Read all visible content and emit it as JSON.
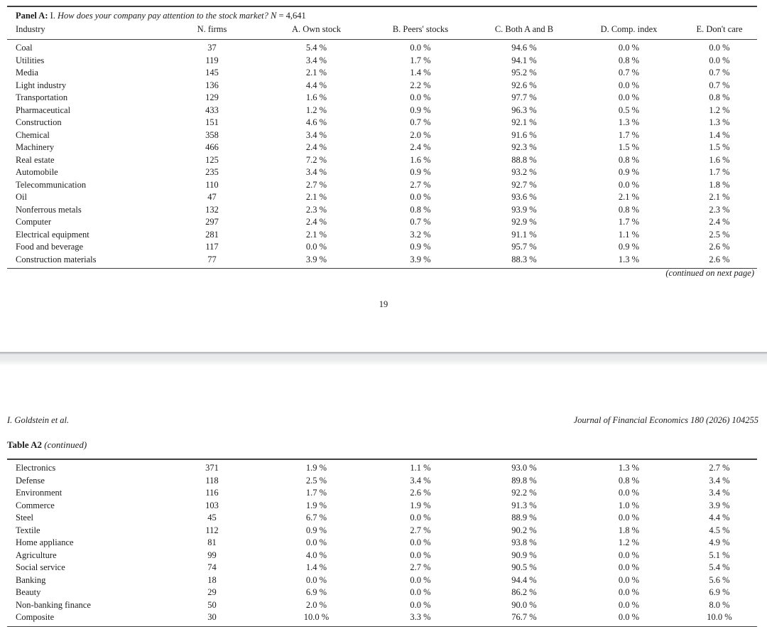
{
  "page1": {
    "panel": {
      "label": "Panel A:",
      "numeral": "I.",
      "question": "How does your company pay attention to the stock market?",
      "n_symbol": "N",
      "n_value": "= 4,641"
    },
    "columns": [
      "Industry",
      "N. firms",
      "A. Own stock",
      "B. Peers' stocks",
      "C. Both A and B",
      "D. Comp. index",
      "E. Don't care"
    ],
    "rows": [
      [
        "Coal",
        "37",
        "5.4 %",
        "0.0 %",
        "94.6 %",
        "0.0 %",
        "0.0 %"
      ],
      [
        "Utilities",
        "119",
        "3.4 %",
        "1.7 %",
        "94.1 %",
        "0.8 %",
        "0.0 %"
      ],
      [
        "Media",
        "145",
        "2.1 %",
        "1.4 %",
        "95.2 %",
        "0.7 %",
        "0.7 %"
      ],
      [
        "Light industry",
        "136",
        "4.4 %",
        "2.2 %",
        "92.6 %",
        "0.0 %",
        "0.7 %"
      ],
      [
        "Transportation",
        "129",
        "1.6 %",
        "0.0 %",
        "97.7 %",
        "0.0 %",
        "0.8 %"
      ],
      [
        "Pharmaceutical",
        "433",
        "1.2 %",
        "0.9 %",
        "96.3 %",
        "0.5 %",
        "1.2 %"
      ],
      [
        "Construction",
        "151",
        "4.6 %",
        "0.7 %",
        "92.1 %",
        "1.3 %",
        "1.3 %"
      ],
      [
        "Chemical",
        "358",
        "3.4 %",
        "2.0 %",
        "91.6 %",
        "1.7 %",
        "1.4 %"
      ],
      [
        "Machinery",
        "466",
        "2.4 %",
        "2.4 %",
        "92.3 %",
        "1.5 %",
        "1.5 %"
      ],
      [
        "Real estate",
        "125",
        "7.2 %",
        "1.6 %",
        "88.8 %",
        "0.8 %",
        "1.6 %"
      ],
      [
        "Automobile",
        "235",
        "3.4 %",
        "0.9 %",
        "93.2 %",
        "0.9 %",
        "1.7 %"
      ],
      [
        "Telecommunication",
        "110",
        "2.7 %",
        "2.7 %",
        "92.7 %",
        "0.0 %",
        "1.8 %"
      ],
      [
        "Oil",
        "47",
        "2.1 %",
        "0.0 %",
        "93.6 %",
        "2.1 %",
        "2.1 %"
      ],
      [
        "Nonferrous metals",
        "132",
        "2.3 %",
        "0.8 %",
        "93.9 %",
        "0.8 %",
        "2.3 %"
      ],
      [
        "Computer",
        "297",
        "2.4 %",
        "0.7 %",
        "92.9 %",
        "1.7 %",
        "2.4 %"
      ],
      [
        "Electrical equipment",
        "281",
        "2.1 %",
        "3.2 %",
        "91.1 %",
        "1.1 %",
        "2.5 %"
      ],
      [
        "Food and beverage",
        "117",
        "0.0 %",
        "0.9 %",
        "95.7 %",
        "0.9 %",
        "2.6 %"
      ],
      [
        "Construction materials",
        "77",
        "3.9 %",
        "3.9 %",
        "88.3 %",
        "1.3 %",
        "2.6 %"
      ]
    ],
    "continued_note": "(continued on next page)",
    "page_number": "19"
  },
  "page2": {
    "running_author": "I. Goldstein et al.",
    "running_journal": "Journal of Financial Economics 180 (2026) 104255",
    "table_label": "Table A2",
    "table_label_continued": "(continued)",
    "rows": [
      [
        "Electronics",
        "371",
        "1.9 %",
        "1.1 %",
        "93.0 %",
        "1.3 %",
        "2.7 %"
      ],
      [
        "Defense",
        "118",
        "2.5 %",
        "3.4 %",
        "89.8 %",
        "0.8 %",
        "3.4 %"
      ],
      [
        "Environment",
        "116",
        "1.7 %",
        "2.6 %",
        "92.2 %",
        "0.0 %",
        "3.4 %"
      ],
      [
        "Commerce",
        "103",
        "1.9 %",
        "1.9 %",
        "91.3 %",
        "1.0 %",
        "3.9 %"
      ],
      [
        "Steel",
        "45",
        "6.7 %",
        "0.0 %",
        "88.9 %",
        "0.0 %",
        "4.4 %"
      ],
      [
        "Textile",
        "112",
        "0.9 %",
        "2.7 %",
        "90.2 %",
        "1.8 %",
        "4.5 %"
      ],
      [
        "Home appliance",
        "81",
        "0.0 %",
        "0.0 %",
        "93.8 %",
        "1.2 %",
        "4.9 %"
      ],
      [
        "Agriculture",
        "99",
        "4.0 %",
        "0.0 %",
        "90.9 %",
        "0.0 %",
        "5.1 %"
      ],
      [
        "Social service",
        "74",
        "1.4 %",
        "2.7 %",
        "90.5 %",
        "0.0 %",
        "5.4 %"
      ],
      [
        "Banking",
        "18",
        "0.0 %",
        "0.0 %",
        "94.4 %",
        "0.0 %",
        "5.6 %"
      ],
      [
        "Beauty",
        "29",
        "6.9 %",
        "0.0 %",
        "86.2 %",
        "0.0 %",
        "6.9 %"
      ],
      [
        "Non-banking finance",
        "50",
        "2.0 %",
        "0.0 %",
        "90.0 %",
        "0.0 %",
        "8.0 %"
      ],
      [
        "Composite",
        "30",
        "10.0 %",
        "3.3 %",
        "76.7 %",
        "0.0 %",
        "10.0 %"
      ]
    ]
  }
}
